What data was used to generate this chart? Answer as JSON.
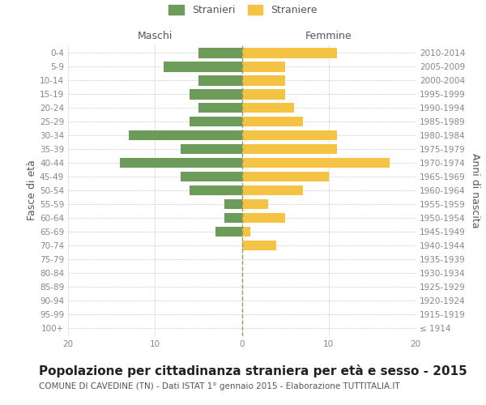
{
  "age_groups": [
    "100+",
    "95-99",
    "90-94",
    "85-89",
    "80-84",
    "75-79",
    "70-74",
    "65-69",
    "60-64",
    "55-59",
    "50-54",
    "45-49",
    "40-44",
    "35-39",
    "30-34",
    "25-29",
    "20-24",
    "15-19",
    "10-14",
    "5-9",
    "0-4"
  ],
  "birth_years": [
    "≤ 1914",
    "1915-1919",
    "1920-1924",
    "1925-1929",
    "1930-1934",
    "1935-1939",
    "1940-1944",
    "1945-1949",
    "1950-1954",
    "1955-1959",
    "1960-1964",
    "1965-1969",
    "1970-1974",
    "1975-1979",
    "1980-1984",
    "1985-1989",
    "1990-1994",
    "1995-1999",
    "2000-2004",
    "2005-2009",
    "2010-2014"
  ],
  "maschi": [
    0,
    0,
    0,
    0,
    0,
    0,
    0,
    3,
    2,
    2,
    6,
    7,
    14,
    7,
    13,
    6,
    5,
    6,
    5,
    9,
    5
  ],
  "femmine": [
    0,
    0,
    0,
    0,
    0,
    0,
    4,
    1,
    5,
    3,
    7,
    10,
    17,
    11,
    11,
    7,
    6,
    5,
    5,
    5,
    11
  ],
  "color_maschi": "#6d9b5a",
  "color_femmine": "#f5c343",
  "xlim": 20,
  "title": "Popolazione per cittadinanza straniera per età e sesso - 2015",
  "subtitle": "COMUNE DI CAVEDINE (TN) - Dati ISTAT 1° gennaio 2015 - Elaborazione TUTTITALIA.IT",
  "ylabel_left": "Fasce di età",
  "ylabel_right": "Anni di nascita",
  "label_maschi": "Stranieri",
  "label_femmine": "Straniere",
  "header_maschi": "Maschi",
  "header_femmine": "Femmine",
  "background_color": "#ffffff",
  "grid_color": "#cccccc",
  "tick_label_color": "#888888",
  "axis_label_color": "#555555",
  "title_fontsize": 11,
  "subtitle_fontsize": 7.5,
  "tick_fontsize": 7.5,
  "ylabel_fontsize": 9
}
